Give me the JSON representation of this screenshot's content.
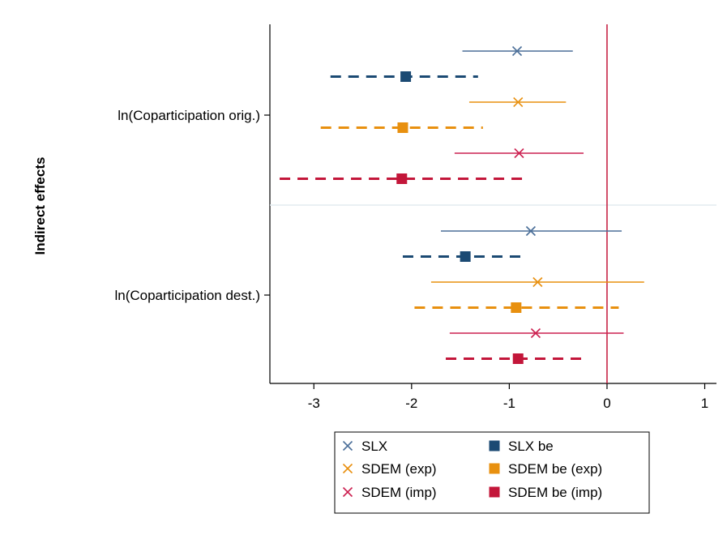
{
  "chart_data": {
    "type": "coefficient-plot",
    "orientation": "horizontal",
    "ylabel": "Indirect effects",
    "xlabel": "",
    "xlim": [
      -3.45,
      1.12
    ],
    "xticks": [
      -3,
      -2,
      -1,
      0,
      1
    ],
    "xtick_labels": [
      "-3",
      "-2",
      "-1",
      "0",
      "1"
    ],
    "reference_line": 0,
    "reference_line_color": "#c3163a",
    "grid": false,
    "legend_placement": "bottom",
    "categories": [
      "ln(Coparticipation orig.)",
      "ln(Coparticipation dest.)"
    ],
    "series": [
      {
        "name": "SLX",
        "color": "#4b6f99",
        "marker": "x",
        "line": "solid",
        "estimates": [
          -0.92,
          -0.78
        ],
        "ci_low": [
          -1.48,
          -1.7
        ],
        "ci_high": [
          -0.35,
          0.15
        ]
      },
      {
        "name": "SLX be",
        "color": "#1b4a73",
        "marker": "square",
        "line": "dashed",
        "estimates": [
          -2.06,
          -1.45
        ],
        "ci_low": [
          -2.83,
          -2.09
        ],
        "ci_high": [
          -1.32,
          -0.83
        ]
      },
      {
        "name": "SDEM (exp)",
        "color": "#e8900f",
        "marker": "x",
        "line": "solid",
        "estimates": [
          -0.91,
          -0.71
        ],
        "ci_low": [
          -1.41,
          -1.8
        ],
        "ci_high": [
          -0.42,
          0.38
        ]
      },
      {
        "name": "SDEM be (exp)",
        "color": "#e8900f",
        "marker": "square",
        "line": "dashed",
        "estimates": [
          -2.09,
          -0.93
        ],
        "ci_low": [
          -2.93,
          -1.97
        ],
        "ci_high": [
          -1.27,
          0.12
        ]
      },
      {
        "name": "SDEM (imp)",
        "color": "#cc2050",
        "marker": "x",
        "line": "solid",
        "estimates": [
          -0.9,
          -0.73
        ],
        "ci_low": [
          -1.56,
          -1.61
        ],
        "ci_high": [
          -0.24,
          0.17
        ]
      },
      {
        "name": "SDEM be (imp)",
        "color": "#c3163a",
        "marker": "square",
        "line": "dashed",
        "estimates": [
          -2.1,
          -0.91
        ],
        "ci_low": [
          -3.35,
          -1.65
        ],
        "ci_high": [
          -0.85,
          -0.22
        ]
      }
    ],
    "legend": {
      "columns": 2,
      "entries": [
        "SLX",
        "SLX be",
        "SDEM (exp)",
        "SDEM be (exp)",
        "SDEM (imp)",
        "SDEM be (imp)"
      ]
    }
  }
}
